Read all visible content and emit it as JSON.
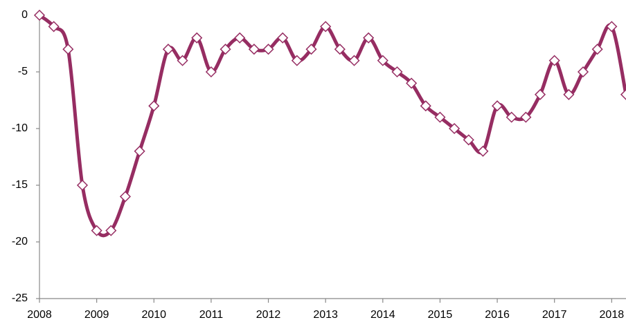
{
  "chart_data": {
    "type": "line",
    "x": [
      2008,
      2008.25,
      2008.5,
      2008.75,
      2009,
      2009.25,
      2009.5,
      2009.75,
      2010,
      2010.25,
      2010.5,
      2010.75,
      2011,
      2011.25,
      2011.5,
      2011.75,
      2012,
      2012.25,
      2012.5,
      2012.75,
      2013,
      2013.25,
      2013.5,
      2013.75,
      2014,
      2014.25,
      2014.5,
      2014.75,
      2015,
      2015.25,
      2015.5,
      2015.75,
      2016,
      2016.25,
      2016.5,
      2016.75,
      2017,
      2017.25,
      2017.5,
      2017.75,
      2018,
      2018.25
    ],
    "values": [
      0,
      -1,
      -3,
      -15,
      -19,
      -19,
      -16,
      -12,
      -8,
      -3,
      -4,
      -2,
      -5,
      -3,
      -2,
      -3,
      -3,
      -2,
      -4,
      -3,
      -1,
      -3,
      -4,
      -2,
      -4,
      -5,
      -6,
      -8,
      -9,
      -10,
      -11,
      -12,
      -8,
      -9,
      -9,
      -7,
      -4,
      -7,
      -5,
      -3,
      -1,
      -7
    ],
    "color": "#962d62",
    "xlim": [
      2008,
      2018.25
    ],
    "xticks": [
      2008,
      2009,
      2010,
      2011,
      2012,
      2013,
      2014,
      2015,
      2016,
      2017,
      2018
    ],
    "ylim": [
      -25,
      0
    ],
    "yticks": [
      0,
      -5,
      -10,
      -15,
      -20,
      -25
    ],
    "grid": false
  }
}
